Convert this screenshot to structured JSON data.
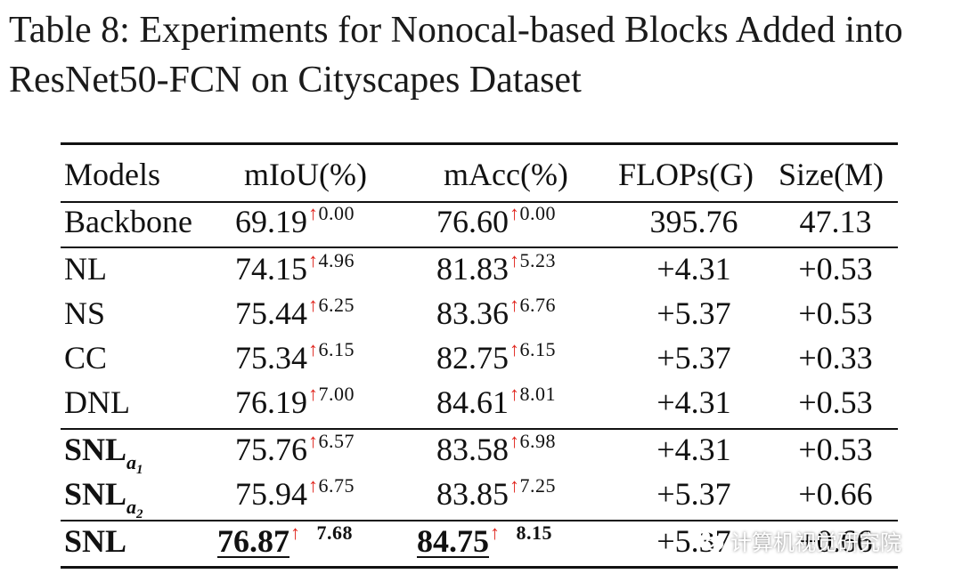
{
  "caption": "Table 8: Experiments for Nonocal-based Blocks Added into ResNet50-FCN on Cityscapes Dataset",
  "table": {
    "headers": [
      "Models",
      "mIoU(%)",
      "mAcc(%)",
      "FLOPs(G)",
      "Size(M)"
    ],
    "arrow": "↑",
    "rows": [
      {
        "model": "Backbone",
        "miou": "69.19",
        "miou_gain": "0.00",
        "macc": "76.60",
        "macc_gain": "0.00",
        "flops": "395.76",
        "size": "47.13"
      },
      {
        "model": "NL",
        "miou": "74.15",
        "miou_gain": "4.96",
        "macc": "81.83",
        "macc_gain": "5.23",
        "flops": "+4.31",
        "size": "+0.53"
      },
      {
        "model": "NS",
        "miou": "75.44",
        "miou_gain": "6.25",
        "macc": "83.36",
        "macc_gain": "6.76",
        "flops": "+5.37",
        "size": "+0.53"
      },
      {
        "model": "CC",
        "miou": "75.34",
        "miou_gain": "6.15",
        "macc": "82.75",
        "macc_gain": "6.15",
        "flops": "+5.37",
        "size": "+0.33"
      },
      {
        "model": "DNL",
        "miou": "76.19",
        "miou_gain": "7.00",
        "macc": "84.61",
        "macc_gain": "8.01",
        "flops": "+4.31",
        "size": "+0.53"
      },
      {
        "model": "SNL",
        "model_sub": "a",
        "model_subsub": "1",
        "miou": "75.76",
        "miou_gain": "6.57",
        "macc": "83.58",
        "macc_gain": "6.98",
        "flops": "+4.31",
        "size": "+0.53"
      },
      {
        "model": "SNL",
        "model_sub": "a",
        "model_subsub": "2",
        "miou": "75.94",
        "miou_gain": "6.75",
        "macc": "83.85",
        "macc_gain": "7.25",
        "flops": "+5.37",
        "size": "+0.66"
      },
      {
        "model": "SNL",
        "miou": "76.87",
        "miou_gain": "7.68",
        "macc": "84.75",
        "macc_gain": "8.15",
        "flops": "+5.37",
        "size": "+0.66"
      }
    ]
  },
  "watermark": "计算机视觉研究院",
  "colors": {
    "arrow": "#e0261f",
    "text": "#111111"
  }
}
